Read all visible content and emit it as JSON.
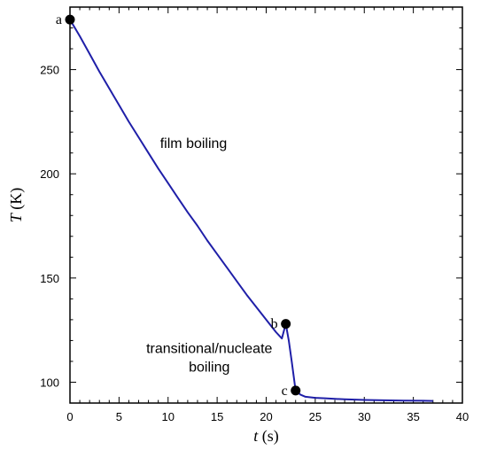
{
  "chart_data": {
    "type": "line",
    "title": "",
    "xlabel_var": "t",
    "xlabel_unit": " (s)",
    "ylabel_var": "T",
    "ylabel_unit": " (K)",
    "xlim": [
      0,
      40
    ],
    "ylim": [
      90,
      280
    ],
    "xticks": [
      0,
      5,
      10,
      15,
      20,
      25,
      30,
      35,
      40
    ],
    "xtick_labels": [
      "0",
      "5",
      "10",
      "15",
      "20",
      "25",
      "30",
      "35",
      "40"
    ],
    "yticks": [
      100,
      150,
      200,
      250
    ],
    "ytick_labels": [
      "100",
      "150",
      "200",
      "250"
    ],
    "grid": false,
    "line_color": "#1f1fa8",
    "series": [
      {
        "x": [
          0,
          1,
          2,
          3,
          4,
          5,
          6,
          7,
          8,
          9,
          10,
          11,
          12,
          13,
          14,
          15,
          16,
          17,
          18,
          19,
          20,
          21,
          21.6,
          22,
          22.3,
          22.6,
          22.8,
          23,
          23.5,
          24,
          25,
          26,
          27,
          28,
          30,
          32,
          34,
          36,
          37
        ],
        "y": [
          274,
          266,
          257.5,
          249,
          241,
          233,
          225,
          217.5,
          210,
          202.5,
          195.5,
          188.5,
          181.5,
          175,
          168,
          161.5,
          155,
          148.5,
          142,
          136,
          130,
          124,
          121,
          128,
          120,
          110,
          103,
          96,
          94,
          93,
          92.5,
          92.3,
          92,
          91.8,
          91.5,
          91.3,
          91.2,
          91.1,
          91
        ]
      }
    ],
    "points": [
      {
        "label": "a",
        "x": 0,
        "y": 274
      },
      {
        "label": "b",
        "x": 22,
        "y": 128
      },
      {
        "label": "c",
        "x": 23,
        "y": 96
      }
    ],
    "annotations": [
      {
        "text": "film boiling",
        "x": 12.6,
        "y": 212.5
      },
      {
        "text": "transitional/nucleate",
        "x": 14.2,
        "y": 114
      },
      {
        "text": "boiling",
        "x": 14.2,
        "y": 105
      }
    ]
  }
}
